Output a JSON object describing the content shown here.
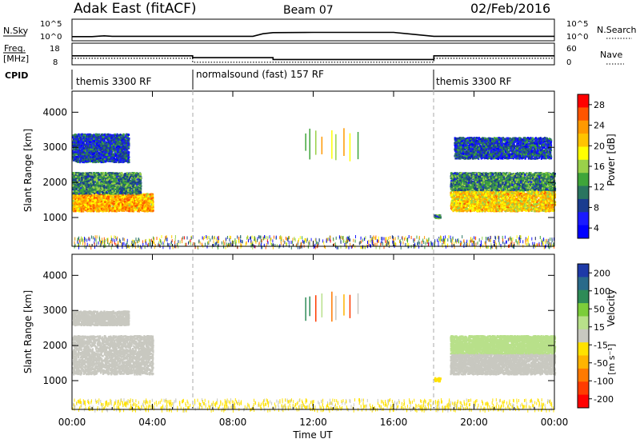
{
  "header": {
    "title": "Adak East (fitACF)",
    "beam": "Beam 07",
    "date": "02/Feb/2016"
  },
  "status_panels": {
    "nsky_label": "N.Sky",
    "nsky_ticks": [
      "10^5",
      "10^0"
    ],
    "nsearch_label": "N.Search",
    "nsearch_ticks": [
      "10^5",
      "10^0"
    ],
    "freq_label": "Freq.",
    "freq_unit": "[MHz]",
    "freq_ticks": [
      "18",
      "8"
    ],
    "nave_label": "Nave",
    "nave_ticks": [
      "60",
      "0"
    ],
    "cpid_label": "CPID"
  },
  "cpid_segments": [
    {
      "label": "themis 3300 RF",
      "start_h": 0,
      "end_h": 6
    },
    {
      "label": "normalsound (fast) 157 RF",
      "start_h": 6,
      "end_h": 18
    },
    {
      "label": "themis 3300 RF",
      "start_h": 18,
      "end_h": 24
    }
  ],
  "time_axis": {
    "label": "Time UT",
    "ticks": [
      "00:00",
      "04:00",
      "08:00",
      "12:00",
      "16:00",
      "20:00",
      "00:00"
    ],
    "range_h": [
      0,
      24
    ],
    "major_step_h": 4,
    "dashed_marker_hours": [
      6,
      18
    ]
  },
  "power_colorbar": {
    "label": "Power [dB]",
    "ticks": [
      "28",
      "24",
      "20",
      "16",
      "12",
      "8",
      "4"
    ],
    "colors": [
      "#ff0000",
      "#ff5500",
      "#ff9900",
      "#ffc400",
      "#ffff00",
      "#9ad14a",
      "#3fa53a",
      "#2a7560",
      "#1a3c8f",
      "#1a1aff",
      "#0000ff"
    ]
  },
  "velocity_colorbar": {
    "label": "Velocity",
    "unit": "[m s⁻¹]",
    "ticks": [
      "200",
      "100",
      "50",
      "15",
      "-15",
      "-50",
      "-100",
      "-200"
    ],
    "colors": [
      "#1e3aa8",
      "#2a6a8a",
      "#2e8b57",
      "#7ccd3a",
      "#b8e08a",
      "#c8c8c0",
      "#ffe200",
      "#ffb400",
      "#ff7a00",
      "#ff3c00",
      "#ff0000"
    ]
  },
  "chart_data": [
    {
      "type": "line",
      "panel": "N.Sky / N.Search",
      "yscale": "log",
      "ylim": [
        1,
        100000
      ],
      "x_hours": [
        0,
        1,
        1.6,
        2,
        3,
        4,
        5,
        6,
        7,
        8,
        9,
        9.5,
        10,
        12,
        14,
        16,
        18,
        20,
        22,
        24
      ],
      "series": [
        {
          "values": [
            5,
            5,
            8,
            6,
            6,
            6,
            6,
            6,
            6,
            6,
            6,
            30,
            60,
            70,
            70,
            70,
            6,
            6,
            6,
            6
          ]
        }
      ]
    },
    {
      "type": "line",
      "panel": "Freq. / Nave",
      "series": [
        {
          "name": "Freq.",
          "x_hours": [
            0,
            6,
            6,
            10,
            10,
            18,
            18,
            24
          ],
          "values": [
            12,
            12,
            11,
            11,
            10,
            10,
            12,
            12
          ]
        },
        {
          "name": "Nave",
          "x_hours": [
            0,
            6,
            6,
            18,
            18,
            24
          ],
          "values": [
            16,
            16,
            3,
            3,
            16,
            16
          ]
        }
      ]
    },
    {
      "type": "heatmap",
      "title": "Power [dB]",
      "xlabel": "Time UT",
      "ylabel": "Slant Range [km]",
      "xlim_h": [
        0,
        24
      ],
      "ylim_km": [
        180,
        4600
      ],
      "y_ticks": [
        1000,
        2000,
        3000,
        4000
      ],
      "clim": [
        0,
        30
      ],
      "features": [
        {
          "t_start_h": 0.0,
          "t_end_h": 4.0,
          "range_low_km": 1200,
          "range_high_km": 1700,
          "power_db": 22
        },
        {
          "t_start_h": 0.0,
          "t_end_h": 3.4,
          "range_low_km": 1700,
          "range_high_km": 2300,
          "power_db": 10
        },
        {
          "t_start_h": 0.0,
          "t_end_h": 2.8,
          "range_low_km": 2600,
          "range_high_km": 3400,
          "power_db": 6
        },
        {
          "t_start_h": 18.0,
          "t_end_h": 18.3,
          "range_low_km": 1000,
          "range_high_km": 1100,
          "power_db": 10
        },
        {
          "t_start_h": 18.8,
          "t_end_h": 24.0,
          "range_low_km": 1200,
          "range_high_km": 1800,
          "power_db": 20
        },
        {
          "t_start_h": 18.8,
          "t_end_h": 24.0,
          "range_low_km": 1800,
          "range_high_km": 2300,
          "power_db": 10
        },
        {
          "t_start_h": 19.0,
          "t_end_h": 23.8,
          "range_low_km": 2700,
          "range_high_km": 3300,
          "power_db": 6
        },
        {
          "t_start_h": 0.0,
          "t_end_h": 24.0,
          "range_low_km": 180,
          "range_high_km": 500,
          "power_db": 14
        }
      ]
    },
    {
      "type": "heatmap",
      "title": "Velocity [m s⁻¹]",
      "xlabel": "Time UT",
      "ylabel": "Slant Range [km]",
      "xlim_h": [
        0,
        24
      ],
      "ylim_km": [
        180,
        4600
      ],
      "y_ticks": [
        1000,
        2000,
        3000,
        4000
      ],
      "clim": [
        -200,
        200
      ],
      "features": [
        {
          "t_start_h": 0.0,
          "t_end_h": 4.0,
          "range_low_km": 1200,
          "range_high_km": 2300,
          "velocity_ms": 0
        },
        {
          "t_start_h": 0.0,
          "t_end_h": 2.8,
          "range_low_km": 2600,
          "range_high_km": 3000,
          "velocity_ms": 0
        },
        {
          "t_start_h": 18.0,
          "t_end_h": 18.3,
          "range_low_km": 1000,
          "range_high_km": 1100,
          "velocity_ms": -50
        },
        {
          "t_start_h": 18.8,
          "t_end_h": 24.0,
          "range_low_km": 1200,
          "range_high_km": 1800,
          "velocity_ms": 0
        },
        {
          "t_start_h": 18.8,
          "t_end_h": 24.0,
          "range_low_km": 1800,
          "range_high_km": 2300,
          "velocity_ms": 30
        },
        {
          "t_start_h": 0.0,
          "t_end_h": 24.0,
          "range_low_km": 180,
          "range_high_km": 500,
          "velocity_ms": -30
        }
      ]
    }
  ]
}
